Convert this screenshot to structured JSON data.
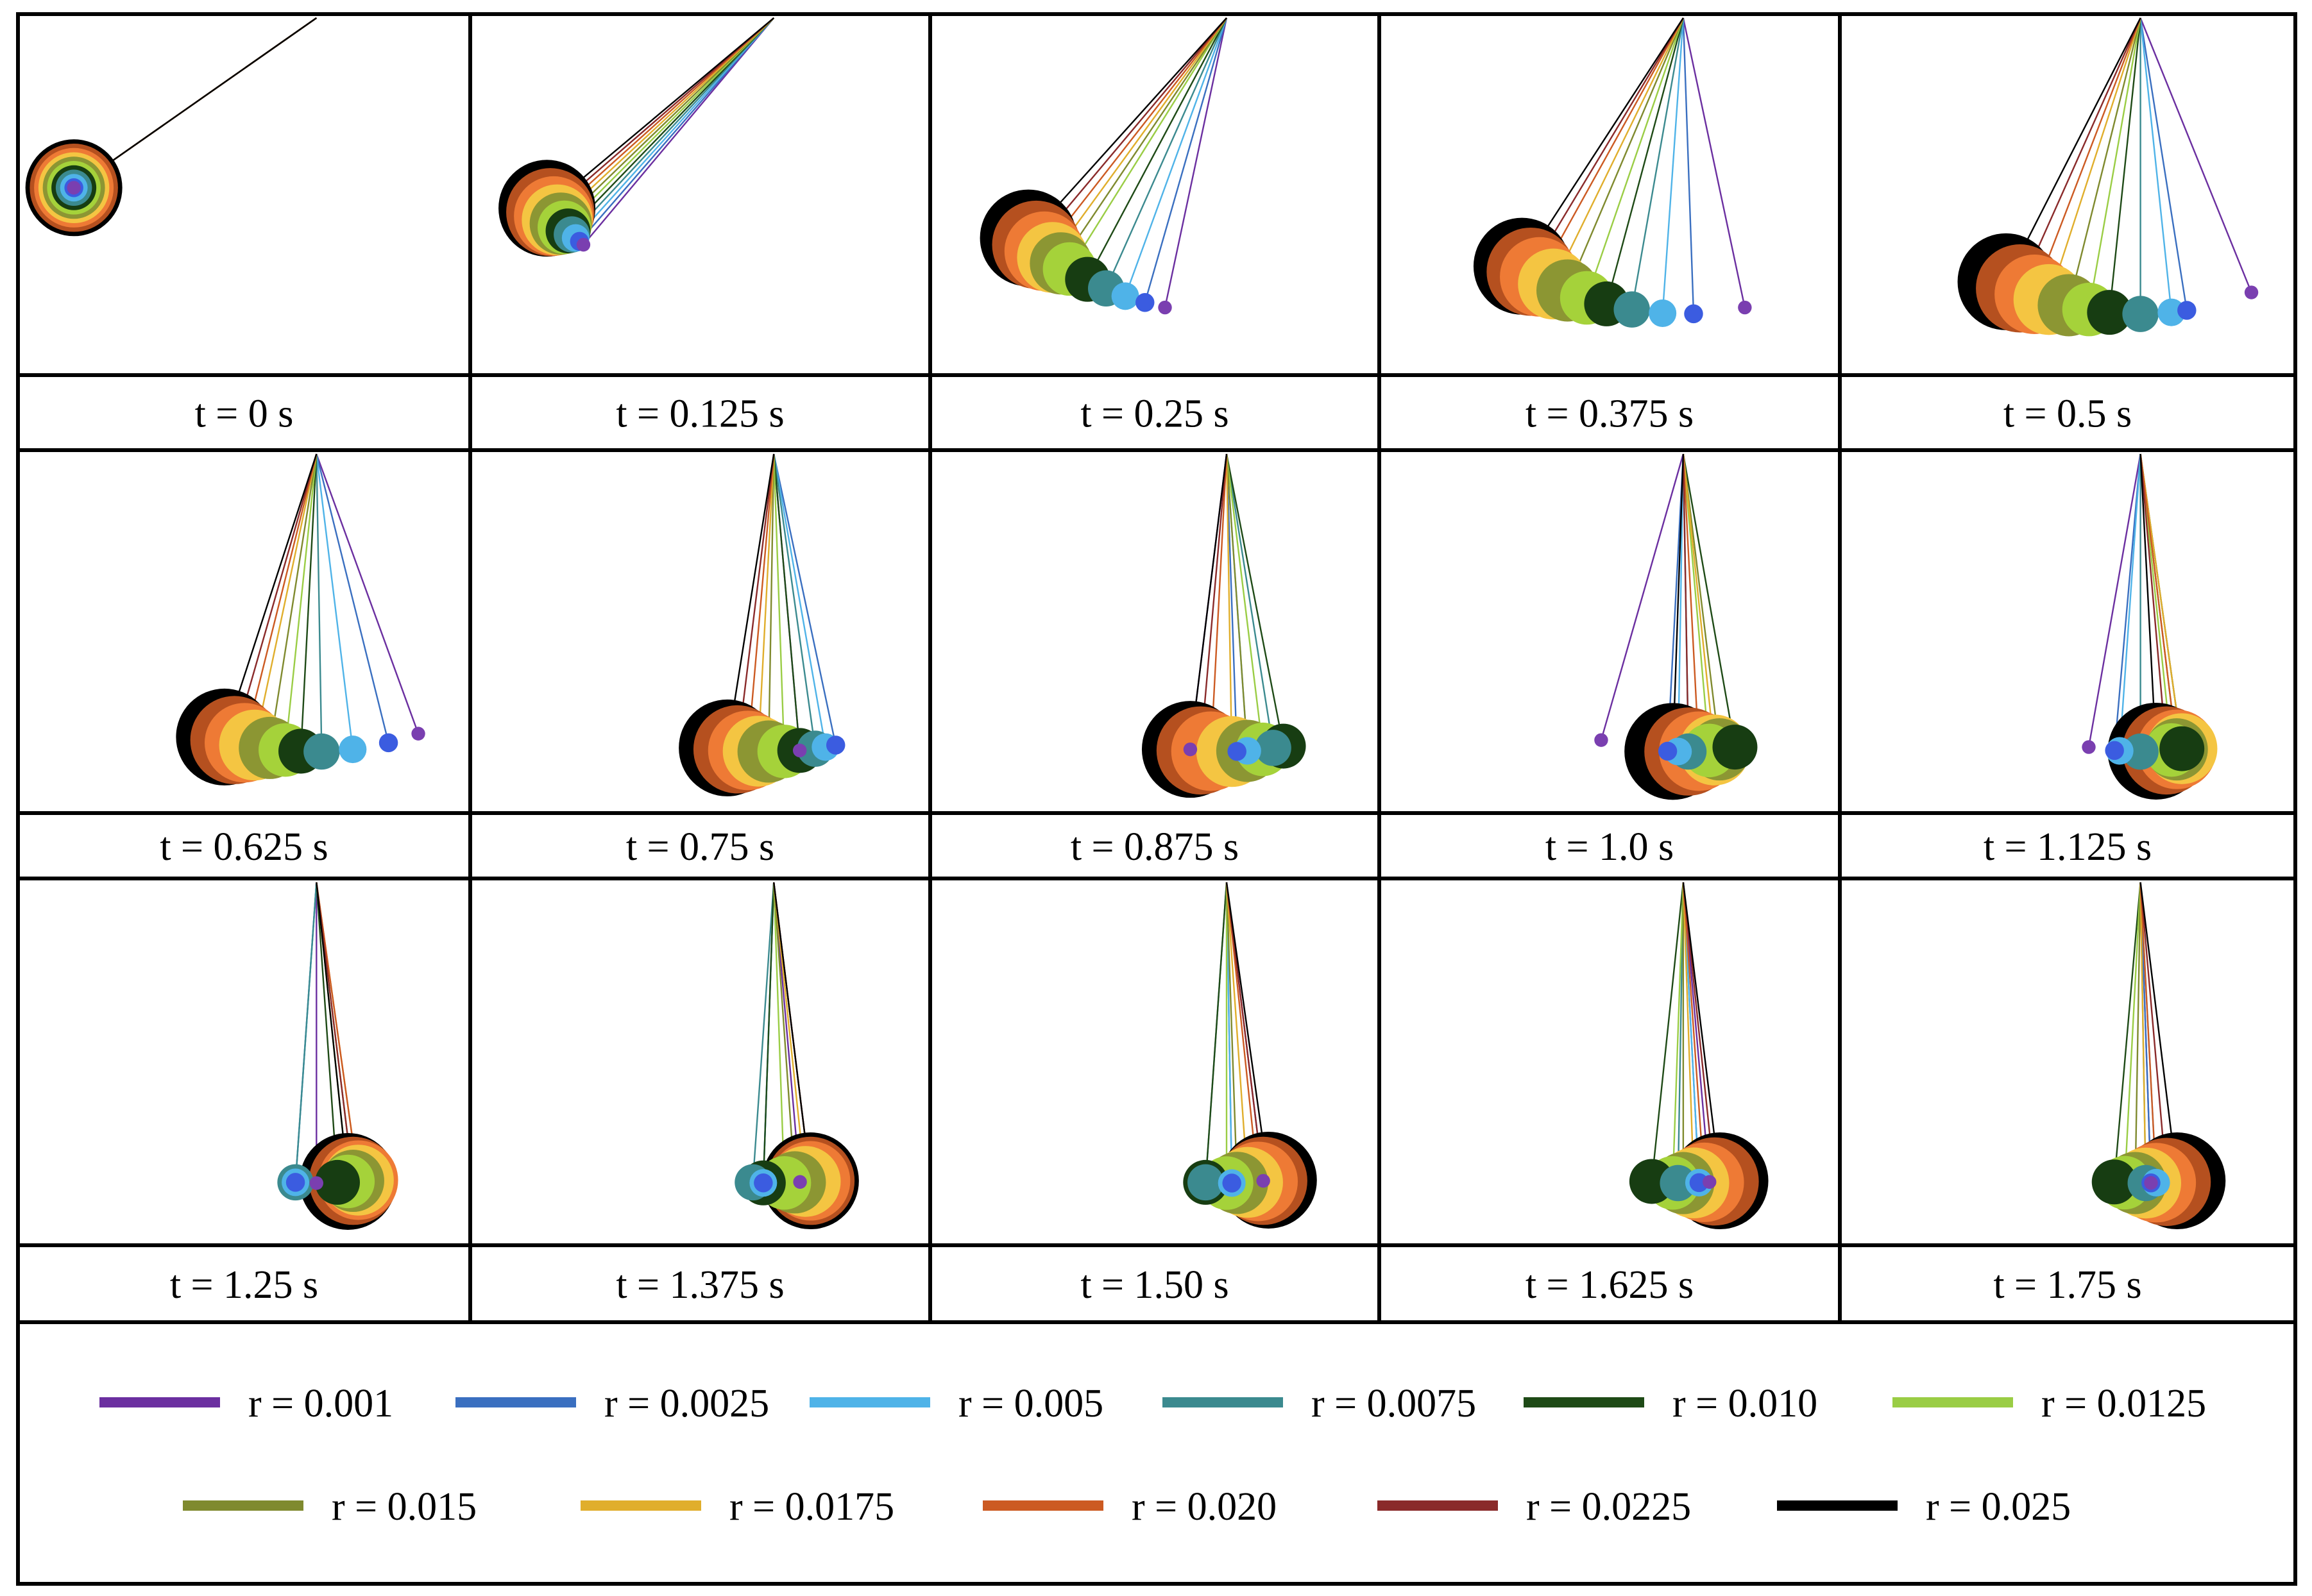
{
  "figure": {
    "description_free": true,
    "frames": [
      {
        "label": "t = 0 s",
        "theta": [
          -55,
          -55,
          -55,
          -55,
          -55,
          -55,
          -55,
          -55,
          -55,
          -55,
          -55
        ]
      },
      {
        "label": "t = 0.125 s",
        "theta": [
          -40,
          -41,
          -42,
          -43,
          -44,
          -45,
          -46,
          -47,
          -48,
          -49,
          -50
        ]
      },
      {
        "label": "t = 0.25 s",
        "theta": [
          -12,
          -16,
          -20,
          -24,
          -28,
          -32,
          -34,
          -36,
          -38,
          -40,
          -42
        ]
      },
      {
        "label": "t = 0.375 s",
        "theta": [
          12,
          2,
          -4,
          -10,
          -15,
          -19,
          -23,
          -26,
          -29,
          -31,
          -33
        ]
      },
      {
        "label": "t = 0.5 s",
        "theta": [
          22,
          9,
          6,
          0,
          -6,
          -10,
          -14,
          -18,
          -21,
          -24,
          -27
        ]
      },
      {
        "label": "t = 0.625 s",
        "theta": [
          20,
          14,
          7,
          1,
          -3,
          -6,
          -9,
          -12,
          -14,
          -16,
          -18
        ]
      },
      {
        "label": "t = 0.75 s",
        "theta": [
          5,
          12,
          10,
          8,
          5,
          2,
          -1,
          -3,
          -5,
          -7,
          -9
        ]
      },
      {
        "label": "t = 0.875 s",
        "theta": [
          -7,
          2,
          4,
          9,
          11,
          7,
          4,
          1,
          -3,
          -5,
          -7
        ]
      },
      {
        "label": "t = 1.0 s",
        "theta": [
          -16,
          -3,
          -1,
          1,
          10,
          5,
          7,
          6,
          3,
          1,
          -2
        ]
      },
      {
        "label": "t = 1.125 s",
        "theta": [
          -10,
          -5,
          -4,
          0,
          8,
          6,
          7,
          8,
          7,
          5,
          3
        ]
      },
      {
        "label": "t = 1.25 s",
        "theta": [
          0,
          -4,
          -4,
          -4,
          4,
          6,
          7,
          8,
          8,
          7,
          6
        ]
      },
      {
        "label": "t = 1.375 s",
        "theta": [
          5,
          -2,
          -2,
          -4,
          -2,
          2,
          4,
          6,
          7,
          7,
          7
        ]
      },
      {
        "label": "t = 1.50 s",
        "theta": [
          7,
          1,
          1,
          -4,
          -4,
          0,
          2,
          4,
          6,
          7,
          8
        ]
      },
      {
        "label": "t = 1.625 s",
        "theta": [
          5,
          3,
          3,
          -1,
          -6,
          -2,
          0,
          2,
          4,
          6,
          7
        ]
      },
      {
        "label": "t = 1.75 s",
        "theta": [
          2,
          2,
          3,
          1,
          -5,
          -3,
          -1,
          1,
          3,
          5,
          7
        ]
      }
    ],
    "series": [
      {
        "label": "r = 0.001",
        "r": 0.001,
        "color": "#6B2FA0"
      },
      {
        "label": "r = 0.0025",
        "r": 0.0025,
        "color": "#3A6FC0"
      },
      {
        "label": "r = 0.005",
        "r": 0.005,
        "color": "#4FB3E8"
      },
      {
        "label": "r = 0.0075",
        "r": 0.0075,
        "color": "#3B8A8F"
      },
      {
        "label": "r = 0.010",
        "r": 0.01,
        "color": "#1E4A16"
      },
      {
        "label": "r = 0.0125",
        "r": 0.0125,
        "color": "#9ACD45"
      },
      {
        "label": "r = 0.015",
        "r": 0.015,
        "color": "#7F8A2E"
      },
      {
        "label": "r = 0.0175",
        "r": 0.0175,
        "color": "#E0AE2C"
      },
      {
        "label": "r = 0.020",
        "r": 0.02,
        "color": "#CC5A22"
      },
      {
        "label": "r = 0.0225",
        "r": 0.0225,
        "color": "#8A2A2A"
      },
      {
        "label": "r = 0.025",
        "r": 0.025,
        "color": "#000000"
      }
    ],
    "fill_colors": {
      "r = 0.001": "#7A3FB0",
      "r = 0.0025": "#3B5CE0",
      "r = 0.005": "#4FB3E8",
      "r = 0.0075": "#3B8A8F",
      "r = 0.010": "#173D12",
      "r = 0.0125": "#A5D23A",
      "r = 0.015": "#8C9633",
      "r = 0.0175": "#F4C542",
      "r = 0.020": "#EE7A35",
      "r = 0.0225": "#B5501F",
      "r = 0.025": "#000000"
    }
  }
}
